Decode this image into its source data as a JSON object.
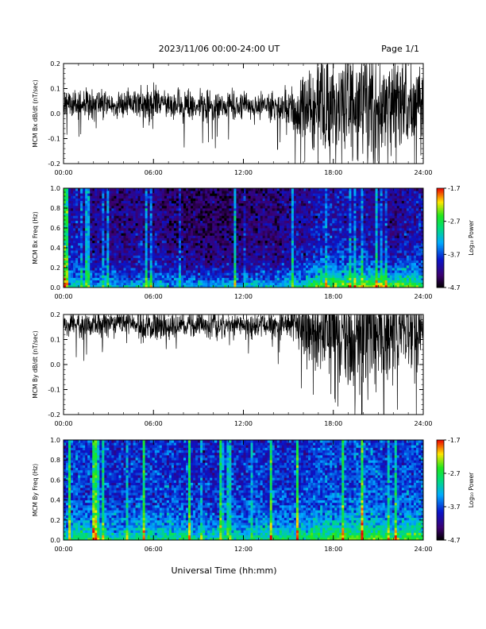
{
  "header": {
    "title": "2023/11/06  00:00-24:00 UT",
    "page": "Page 1/1"
  },
  "footer": {
    "xlabel": "Universal Time (hh:mm)"
  },
  "chart_data": [
    {
      "type": "line",
      "ylabel": "MCM Bx dB/dt (nT/sec)",
      "xlim": [
        "00:00",
        "24:00"
      ],
      "x_ticks": [
        "00:00",
        "06:00",
        "12:00",
        "18:00",
        "24:00"
      ],
      "ylim": [
        -0.2,
        0.2
      ],
      "y_ticks": [
        "-0.2",
        "-0.1",
        "0.0",
        "0.1",
        "0.2"
      ],
      "series": [
        {
          "x_hours": [
            0,
            1,
            2,
            3,
            4,
            5,
            6,
            7,
            8,
            9,
            10,
            11,
            12,
            13,
            14,
            15,
            16,
            17,
            18,
            19,
            20,
            21,
            22,
            23,
            24
          ],
          "baseline": [
            0.04,
            0.04,
            0.04,
            0.04,
            0.04,
            0.04,
            0.04,
            0.04,
            0.03,
            0.03,
            0.03,
            0.03,
            0.03,
            0.03,
            0.03,
            0.02,
            0.03,
            0.03,
            0.02,
            0.02,
            0.02,
            0.02,
            0.02,
            0.02,
            0.02
          ],
          "amplitude": [
            0.05,
            0.05,
            0.06,
            0.05,
            0.05,
            0.06,
            0.07,
            0.05,
            0.06,
            0.05,
            0.06,
            0.05,
            0.05,
            0.05,
            0.06,
            0.07,
            0.15,
            0.2,
            0.2,
            0.2,
            0.22,
            0.22,
            0.18,
            0.2,
            0.15
          ]
        }
      ]
    },
    {
      "type": "heatmap",
      "ylabel": "MCM Bx Freq (Hz)",
      "colorbar_label": "Log₁₀ Power",
      "xlim": [
        "00:00",
        "24:00"
      ],
      "x_ticks": [
        "00:00",
        "06:00",
        "12:00",
        "18:00",
        "24:00"
      ],
      "ylim": [
        0.0,
        1.0
      ],
      "y_ticks": [
        "0.0",
        "0.2",
        "0.4",
        "0.6",
        "0.8",
        "1.0"
      ],
      "colorbar_ticks": [
        "-1.7",
        "-2.7",
        "-3.7",
        "-4.7"
      ],
      "colorbar_range": [
        -4.7,
        -1.7
      ],
      "low_freq_power": [
        -3.0,
        -3.0,
        -3.2,
        -3.1,
        -3.2,
        -3.1,
        -3.0,
        -3.2,
        -3.1,
        -3.2,
        -3.2,
        -3.1,
        -3.2,
        -3.0,
        -3.1,
        -3.0,
        -2.8,
        -2.4,
        -2.3,
        -2.3,
        -2.2,
        -2.3,
        -2.4,
        -2.3,
        -2.5
      ],
      "high_freq_power": [
        -4.0,
        -4.0,
        -4.2,
        -4.2,
        -4.3,
        -4.2,
        -4.2,
        -4.3,
        -4.4,
        -4.4,
        -4.4,
        -4.4,
        -4.4,
        -4.3,
        -4.3,
        -4.2,
        -4.2,
        -4.0,
        -4.0,
        -4.0,
        -4.1,
        -4.1,
        -4.2,
        -4.1,
        -4.0
      ]
    },
    {
      "type": "line",
      "ylabel": "MCM By dB/dt (nT/sec)",
      "xlim": [
        "00:00",
        "24:00"
      ],
      "x_ticks": [
        "00:00",
        "06:00",
        "12:00",
        "18:00",
        "24:00"
      ],
      "ylim": [
        -0.2,
        0.2
      ],
      "y_ticks": [
        "-0.2",
        "-0.1",
        "0.0",
        "0.1",
        "0.2"
      ],
      "series": [
        {
          "x_hours": [
            0,
            1,
            2,
            3,
            4,
            5,
            6,
            7,
            8,
            9,
            10,
            11,
            12,
            13,
            14,
            15,
            16,
            17,
            18,
            19,
            20,
            21,
            22,
            23,
            24
          ],
          "baseline": [
            0.16,
            0.16,
            0.16,
            0.17,
            0.17,
            0.16,
            0.16,
            0.15,
            0.16,
            0.16,
            0.16,
            0.16,
            0.16,
            0.16,
            0.16,
            0.16,
            0.16,
            0.14,
            0.14,
            0.12,
            0.12,
            0.12,
            0.14,
            0.14,
            0.16
          ],
          "amplitude": [
            0.04,
            0.05,
            0.05,
            0.04,
            0.04,
            0.05,
            0.06,
            0.06,
            0.05,
            0.05,
            0.05,
            0.04,
            0.04,
            0.04,
            0.05,
            0.06,
            0.1,
            0.15,
            0.18,
            0.2,
            0.22,
            0.2,
            0.2,
            0.18,
            0.12
          ]
        }
      ]
    },
    {
      "type": "heatmap",
      "ylabel": "MCM By Freq (Hz)",
      "colorbar_label": "Log₁₀ Power",
      "xlim": [
        "00:00",
        "24:00"
      ],
      "x_ticks": [
        "00:00",
        "06:00",
        "12:00",
        "18:00",
        "24:00"
      ],
      "ylim": [
        0.0,
        1.0
      ],
      "y_ticks": [
        "0.0",
        "0.2",
        "0.4",
        "0.6",
        "0.8",
        "1.0"
      ],
      "colorbar_ticks": [
        "-1.7",
        "-2.7",
        "-3.7",
        "-4.7"
      ],
      "colorbar_range": [
        -4.7,
        -1.7
      ],
      "low_freq_power": [
        -2.8,
        -2.7,
        -2.8,
        -2.8,
        -2.9,
        -2.8,
        -2.8,
        -2.8,
        -2.8,
        -2.9,
        -2.9,
        -2.8,
        -2.9,
        -2.8,
        -2.8,
        -2.8,
        -2.7,
        -2.5,
        -2.4,
        -2.4,
        -2.3,
        -2.4,
        -2.5,
        -2.4,
        -2.5
      ],
      "high_freq_power": [
        -3.8,
        -3.7,
        -3.8,
        -3.8,
        -3.9,
        -3.8,
        -3.8,
        -3.8,
        -3.8,
        -3.9,
        -3.9,
        -3.8,
        -3.9,
        -3.8,
        -3.8,
        -3.8,
        -3.8,
        -3.7,
        -3.7,
        -3.7,
        -3.7,
        -3.7,
        -3.8,
        -3.7,
        -3.7
      ]
    }
  ]
}
